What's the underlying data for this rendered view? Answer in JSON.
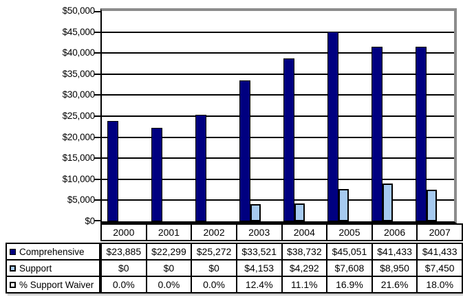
{
  "chart_data": {
    "type": "bar",
    "title": "",
    "xlabel": "",
    "ylabel": "",
    "categories": [
      "2000",
      "2001",
      "2002",
      "2003",
      "2004",
      "2005",
      "2006",
      "2007"
    ],
    "series": [
      {
        "name": "Comprehensive",
        "values": [
          23885,
          22299,
          25272,
          33521,
          38732,
          45051,
          41433,
          41433
        ],
        "display_values": [
          "$23,885",
          "$22,299",
          "$25,272",
          "$33,521",
          "$38,732",
          "$45,051",
          "$41,433",
          "$41,433"
        ],
        "color": "#000080",
        "marker_fill": "#000080",
        "plotted": true
      },
      {
        "name": "Support",
        "values": [
          0,
          0,
          0,
          4153,
          4292,
          7608,
          8950,
          7450
        ],
        "display_values": [
          "$0",
          "$0",
          "$0",
          "$4,153",
          "$4,292",
          "$7,608",
          "$8,950",
          "$7,450"
        ],
        "color": "#A6CAF0",
        "marker_fill": "#A6CAF0",
        "plotted": true
      },
      {
        "name": "% Support Waiver",
        "values": [
          0.0,
          0.0,
          0.0,
          12.4,
          11.1,
          16.9,
          21.6,
          18.0
        ],
        "display_values": [
          "0.0%",
          "0.0%",
          "0.0%",
          "12.4%",
          "11.1%",
          "16.9%",
          "21.6%",
          "18.0%"
        ],
        "color": "#FFFFFF",
        "marker_fill": "#FFFFFF",
        "plotted": false
      }
    ],
    "ylim": [
      0,
      50000
    ],
    "ytick_step": 5000,
    "ytick_labels": [
      "$0",
      "$5,000",
      "$10,000",
      "$15,000",
      "$20,000",
      "$25,000",
      "$30,000",
      "$35,000",
      "$40,000",
      "$45,000",
      "$50,000"
    ],
    "grid": true,
    "gridline_color": "#000000",
    "plot_border_shadow_color": "#8C8C8C",
    "legend_position": "data-table-left"
  }
}
